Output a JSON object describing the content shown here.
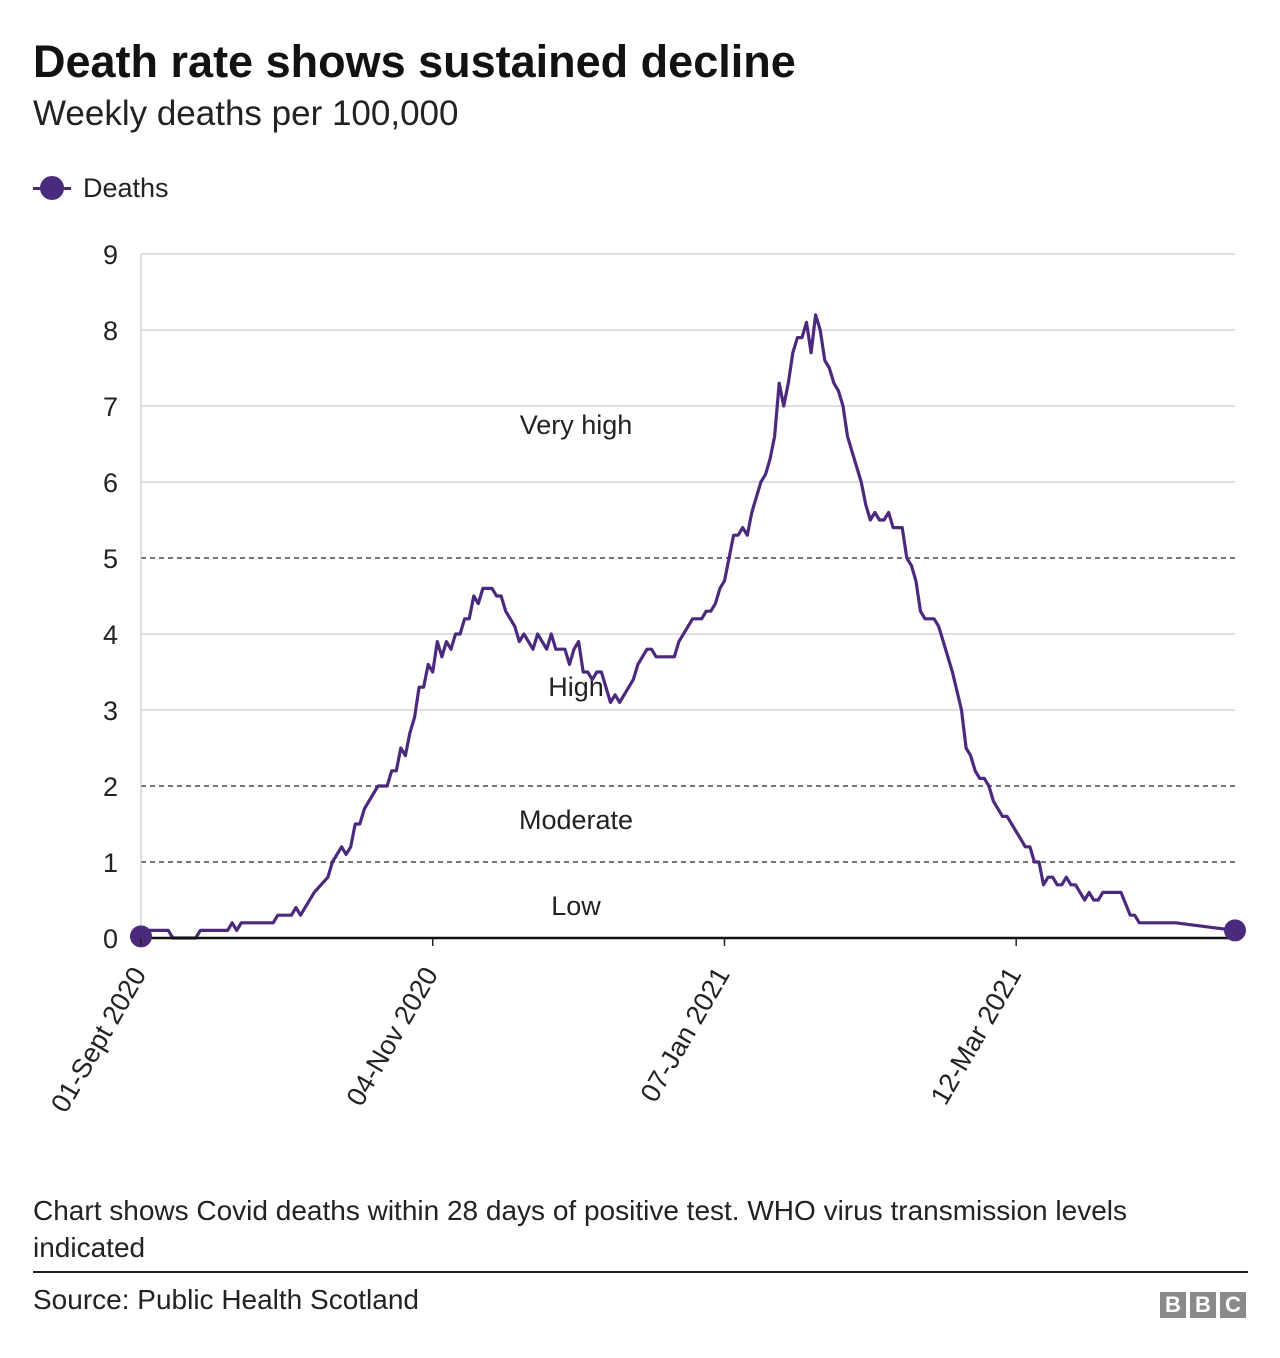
{
  "header": {
    "title": "Death rate shows sustained decline",
    "subtitle": "Weekly deaths per 100,000"
  },
  "legend": {
    "label": "Deaths",
    "color": "#4b2a7d"
  },
  "chart_data": {
    "type": "line",
    "title": "Death rate shows sustained decline",
    "subtitle": "Weekly deaths per 100,000",
    "xlabel": "",
    "ylabel": "",
    "x_start_date": "2020-09-01",
    "x_end_date": "2021-04-29",
    "x_ticks": [
      "01-Sept 2020",
      "04-Nov 2020",
      "07-Jan 2021",
      "12-Mar 2021"
    ],
    "x_tick_dates": [
      "2020-09-01",
      "2020-11-04",
      "2021-01-07",
      "2021-03-12"
    ],
    "y_ticks": [
      0,
      1,
      2,
      3,
      4,
      5,
      6,
      7,
      8,
      9
    ],
    "ylim": [
      0,
      9
    ],
    "grid": true,
    "legend_position": "top-left",
    "thresholds": [
      {
        "value": 1,
        "style": "dashed"
      },
      {
        "value": 2,
        "style": "dashed"
      },
      {
        "value": 5,
        "style": "dashed"
      }
    ],
    "zones": [
      {
        "label": "Low",
        "y": 0.42
      },
      {
        "label": "Moderate",
        "y": 1.55
      },
      {
        "label": "High",
        "y": 3.3
      },
      {
        "label": "Very high",
        "y": 6.75
      }
    ],
    "series": [
      {
        "name": "Deaths",
        "color": "#4b2a7d",
        "points": [
          [
            "2020-09-01",
            0.1
          ],
          [
            "2020-09-05",
            0.1
          ],
          [
            "2020-09-07",
            0.1
          ],
          [
            "2020-09-08",
            0.0
          ],
          [
            "2020-09-11",
            0.0
          ],
          [
            "2020-09-13",
            0.0
          ],
          [
            "2020-09-14",
            0.1
          ],
          [
            "2020-09-17",
            0.1
          ],
          [
            "2020-09-20",
            0.1
          ],
          [
            "2020-09-21",
            0.2
          ],
          [
            "2020-09-22",
            0.1
          ],
          [
            "2020-09-23",
            0.2
          ],
          [
            "2020-09-27",
            0.2
          ],
          [
            "2020-09-30",
            0.2
          ],
          [
            "2020-10-01",
            0.3
          ],
          [
            "2020-10-04",
            0.3
          ],
          [
            "2020-10-05",
            0.4
          ],
          [
            "2020-10-06",
            0.3
          ],
          [
            "2020-10-09",
            0.6
          ],
          [
            "2020-10-12",
            0.8
          ],
          [
            "2020-10-13",
            1.0
          ],
          [
            "2020-10-15",
            1.2
          ],
          [
            "2020-10-16",
            1.1
          ],
          [
            "2020-10-17",
            1.2
          ],
          [
            "2020-10-18",
            1.5
          ],
          [
            "2020-10-19",
            1.5
          ],
          [
            "2020-10-20",
            1.7
          ],
          [
            "2020-10-23",
            2.0
          ],
          [
            "2020-10-25",
            2.0
          ],
          [
            "2020-10-26",
            2.2
          ],
          [
            "2020-10-27",
            2.2
          ],
          [
            "2020-10-28",
            2.5
          ],
          [
            "2020-10-29",
            2.4
          ],
          [
            "2020-10-30",
            2.7
          ],
          [
            "2020-10-31",
            2.9
          ],
          [
            "2020-11-01",
            3.3
          ],
          [
            "2020-11-02",
            3.3
          ],
          [
            "2020-11-03",
            3.6
          ],
          [
            "2020-11-04",
            3.5
          ],
          [
            "2020-11-05",
            3.9
          ],
          [
            "2020-11-06",
            3.7
          ],
          [
            "2020-11-07",
            3.9
          ],
          [
            "2020-11-08",
            3.8
          ],
          [
            "2020-11-09",
            4.0
          ],
          [
            "2020-11-10",
            4.0
          ],
          [
            "2020-11-11",
            4.2
          ],
          [
            "2020-11-12",
            4.2
          ],
          [
            "2020-11-13",
            4.5
          ],
          [
            "2020-11-14",
            4.4
          ],
          [
            "2020-11-15",
            4.6
          ],
          [
            "2020-11-17",
            4.6
          ],
          [
            "2020-11-18",
            4.5
          ],
          [
            "2020-11-19",
            4.5
          ],
          [
            "2020-11-20",
            4.3
          ],
          [
            "2020-11-22",
            4.1
          ],
          [
            "2020-11-23",
            3.9
          ],
          [
            "2020-11-24",
            4.0
          ],
          [
            "2020-11-26",
            3.8
          ],
          [
            "2020-11-27",
            4.0
          ],
          [
            "2020-11-29",
            3.8
          ],
          [
            "2020-11-30",
            4.0
          ],
          [
            "2020-12-01",
            3.8
          ],
          [
            "2020-12-03",
            3.8
          ],
          [
            "2020-12-04",
            3.6
          ],
          [
            "2020-12-05",
            3.8
          ],
          [
            "2020-12-06",
            3.9
          ],
          [
            "2020-12-07",
            3.5
          ],
          [
            "2020-12-08",
            3.5
          ],
          [
            "2020-12-09",
            3.4
          ],
          [
            "2020-12-10",
            3.5
          ],
          [
            "2020-12-11",
            3.5
          ],
          [
            "2020-12-13",
            3.1
          ],
          [
            "2020-12-14",
            3.2
          ],
          [
            "2020-12-15",
            3.1
          ],
          [
            "2020-12-18",
            3.4
          ],
          [
            "2020-12-19",
            3.6
          ],
          [
            "2020-12-21",
            3.8
          ],
          [
            "2020-12-22",
            3.8
          ],
          [
            "2020-12-23",
            3.7
          ],
          [
            "2020-12-27",
            3.7
          ],
          [
            "2020-12-28",
            3.9
          ],
          [
            "2020-12-31",
            4.2
          ],
          [
            "2021-01-02",
            4.2
          ],
          [
            "2021-01-03",
            4.3
          ],
          [
            "2021-01-04",
            4.3
          ],
          [
            "2021-01-05",
            4.4
          ],
          [
            "2021-01-06",
            4.6
          ],
          [
            "2021-01-07",
            4.7
          ],
          [
            "2021-01-09",
            5.3
          ],
          [
            "2021-01-10",
            5.3
          ],
          [
            "2021-01-11",
            5.4
          ],
          [
            "2021-01-12",
            5.3
          ],
          [
            "2021-01-13",
            5.6
          ],
          [
            "2021-01-15",
            6.0
          ],
          [
            "2021-01-16",
            6.1
          ],
          [
            "2021-01-17",
            6.3
          ],
          [
            "2021-01-18",
            6.6
          ],
          [
            "2021-01-19",
            7.3
          ],
          [
            "2021-01-20",
            7.0
          ],
          [
            "2021-01-21",
            7.3
          ],
          [
            "2021-01-22",
            7.7
          ],
          [
            "2021-01-23",
            7.9
          ],
          [
            "2021-01-24",
            7.9
          ],
          [
            "2021-01-25",
            8.1
          ],
          [
            "2021-01-26",
            7.7
          ],
          [
            "2021-01-27",
            8.2
          ],
          [
            "2021-01-28",
            8.0
          ],
          [
            "2021-01-29",
            7.6
          ],
          [
            "2021-01-30",
            7.5
          ],
          [
            "2021-01-31",
            7.3
          ],
          [
            "2021-02-01",
            7.2
          ],
          [
            "2021-02-02",
            7.0
          ],
          [
            "2021-02-03",
            6.6
          ],
          [
            "2021-02-06",
            6.0
          ],
          [
            "2021-02-07",
            5.7
          ],
          [
            "2021-02-08",
            5.5
          ],
          [
            "2021-02-09",
            5.6
          ],
          [
            "2021-02-10",
            5.5
          ],
          [
            "2021-02-11",
            5.5
          ],
          [
            "2021-02-12",
            5.6
          ],
          [
            "2021-02-13",
            5.4
          ],
          [
            "2021-02-15",
            5.4
          ],
          [
            "2021-02-16",
            5.0
          ],
          [
            "2021-02-17",
            4.9
          ],
          [
            "2021-02-18",
            4.7
          ],
          [
            "2021-02-19",
            4.3
          ],
          [
            "2021-02-20",
            4.2
          ],
          [
            "2021-02-22",
            4.2
          ],
          [
            "2021-02-23",
            4.1
          ],
          [
            "2021-02-26",
            3.5
          ],
          [
            "2021-02-28",
            3.0
          ],
          [
            "2021-03-01",
            2.5
          ],
          [
            "2021-03-02",
            2.4
          ],
          [
            "2021-03-03",
            2.2
          ],
          [
            "2021-03-04",
            2.1
          ],
          [
            "2021-03-05",
            2.1
          ],
          [
            "2021-03-06",
            2.0
          ],
          [
            "2021-03-07",
            1.8
          ],
          [
            "2021-03-09",
            1.6
          ],
          [
            "2021-03-10",
            1.6
          ],
          [
            "2021-03-13",
            1.3
          ],
          [
            "2021-03-14",
            1.2
          ],
          [
            "2021-03-15",
            1.2
          ],
          [
            "2021-03-16",
            1.0
          ],
          [
            "2021-03-17",
            1.0
          ],
          [
            "2021-03-18",
            0.7
          ],
          [
            "2021-03-19",
            0.8
          ],
          [
            "2021-03-20",
            0.8
          ],
          [
            "2021-03-21",
            0.7
          ],
          [
            "2021-03-22",
            0.7
          ],
          [
            "2021-03-23",
            0.8
          ],
          [
            "2021-03-24",
            0.7
          ],
          [
            "2021-03-25",
            0.7
          ],
          [
            "2021-03-27",
            0.5
          ],
          [
            "2021-03-28",
            0.6
          ],
          [
            "2021-03-29",
            0.5
          ],
          [
            "2021-03-30",
            0.5
          ],
          [
            "2021-03-31",
            0.6
          ],
          [
            "2021-04-04",
            0.6
          ],
          [
            "2021-04-06",
            0.3
          ],
          [
            "2021-04-07",
            0.3
          ],
          [
            "2021-04-08",
            0.2
          ],
          [
            "2021-04-15",
            0.2
          ],
          [
            "2021-04-16",
            0.2
          ],
          [
            "2021-04-29",
            0.1
          ]
        ]
      }
    ]
  },
  "footer": {
    "note": "Chart shows Covid deaths within 28 days of positive test. WHO virus transmission levels indicated",
    "source": "Source: Public Health Scotland",
    "logo_letters": [
      "B",
      "B",
      "C"
    ]
  }
}
